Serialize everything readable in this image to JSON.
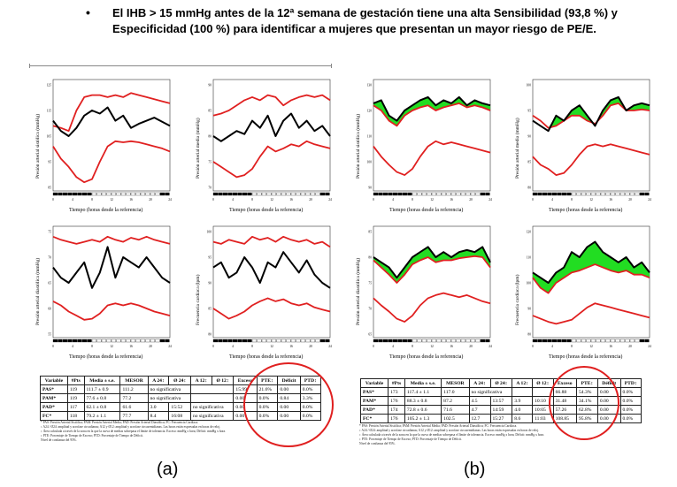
{
  "bullet": "•",
  "headline": "El IHB > 15 mmHg antes de la 12ª semana de gestación tiene una alta Sensibilidad (93,8 %) y Especificidad (100 %) para identificar a mujeres que presentan un mayor riesgo de PE/E.",
  "panels": {
    "a": [
      {
        "ylabel": "Presión arterial sistólica (mmHg)",
        "xlabel": "Tiempo (horas desde la referencia)",
        "yticks": [
          "125",
          "115",
          "105",
          "95",
          "85"
        ]
      },
      {
        "ylabel": "Presión arterial media (mmHg)",
        "xlabel": "Tiempo (horas desde la referencia)",
        "yticks": [
          "90",
          "85",
          "80",
          "75",
          "70"
        ]
      },
      {
        "ylabel": "Presión arterial diastólica (mmHg)",
        "xlabel": "Tiempo (horas desde la referencia)",
        "yticks": [
          "75",
          "70",
          "65",
          "60",
          "55"
        ]
      },
      {
        "ylabel": "Frecuencia cardíaca (lpm)",
        "xlabel": "Tiempo (horas desde la referencia)",
        "yticks": [
          "100",
          "95",
          "90",
          "85",
          "80"
        ]
      }
    ],
    "b": [
      {
        "ylabel": "Presión arterial sistólica (mmHg)",
        "xlabel": "Tiempo (horas desde la referencia)",
        "yticks": [
          "130",
          "120",
          "110",
          "100",
          "90"
        ]
      },
      {
        "ylabel": "Presión arterial media (mmHg)",
        "xlabel": "Tiempo (horas desde la referencia)",
        "yticks": [
          "100",
          "95",
          "90",
          "85",
          "80"
        ]
      },
      {
        "ylabel": "Presión arterial diastólica (mmHg)",
        "xlabel": "Tiempo (horas desde la referencia)",
        "yticks": [
          "85",
          "80",
          "75",
          "70",
          "65"
        ]
      },
      {
        "ylabel": "Frecuencia cardíaca (lpm)",
        "xlabel": "Tiempo (horas desde la referencia)",
        "yticks": [
          "120",
          "110",
          "100",
          "90",
          "80"
        ]
      }
    ]
  },
  "xticks": [
    "0",
    "4",
    "8",
    "12",
    "16",
    "20",
    "24"
  ],
  "tables": {
    "a": {
      "headers": [
        "Variable",
        "#Pts",
        "Media ± s.e.",
        "MESOR",
        "A 24↕",
        "Ø 24↕",
        "A 12↕",
        "Ø 12↕",
        "Exceso",
        "PTE↕",
        "Déficit",
        "PTD↕"
      ],
      "rows": [
        [
          "PAS*",
          "119",
          "111.7 ± 0.9",
          "111.2",
          "no significativa",
          "",
          "",
          "",
          "15.99",
          "21.6%",
          "0.00",
          "0.0%"
        ],
        [
          "PAM*",
          "119",
          "77.6 ± 0.8",
          "77.2",
          "no significativa",
          "",
          "",
          "",
          "0.00",
          "0.0%",
          "0.84",
          "3.3%"
        ],
        [
          "PAD*",
          "117",
          "62.1 ± 0.8",
          "61.6",
          "3.0",
          "15:52",
          "no significativa",
          "",
          "0.00",
          "0.0%",
          "0.00",
          "0.0%"
        ],
        [
          "FC*",
          "118",
          "79.2 ± 1.1",
          "77.7",
          "8.4",
          "16:08",
          "no significativa",
          "",
          "0.00",
          "0.0%",
          "0.00",
          "0.0%"
        ]
      ],
      "footnotes": [
        "* PAS: Presión Arterial Sistólica; PAM: Presión Arterial Media; PAD: Presión Arterial Diastólica; FC: Frecuencia Cardíaca.",
        "↕ A24 / Ø24: amplitud y acrofase circadianas; A12 y Ø12: amplitud y acrofase circasemidianas. Las horas están expresadas en horas de reloj.",
        "↕ Área calculada a través de la zona en la que la curva de medias sobrepasa el límite de tolerancia. Exceso: mmHg x hora; Déficit: mmHg x hora.",
        "↕ PTE: Porcentaje de Tiempo de Exceso; PTD: Porcentaje de Tiempo de Déficit.",
        "Nivel de confianza del 95%."
      ]
    },
    "b": {
      "headers": [
        "Variable",
        "#Pts",
        "Media ± s.e.",
        "MESOR",
        "A 24↕",
        "Ø 24↕",
        "A 12↕",
        "Ø 12↕",
        "Exceso",
        "PTE↕",
        "Déficit",
        "PTD↕"
      ],
      "rows": [
        [
          "PAS*",
          "173",
          "117.4 ± 1.1",
          "117.0",
          "no significativa",
          "",
          "",
          "",
          "66.88",
          "54.3%",
          "0.00",
          "0.0%"
        ],
        [
          "PAM*",
          "176",
          "88.3 ± 0.8",
          "87.2",
          "4.5",
          "13:57",
          "3.9",
          "10:10",
          "31.48",
          "34.1%",
          "0.00",
          "0.0%"
        ],
        [
          "PAD*",
          "174",
          "72.8 ± 0.6",
          "71.6",
          "4.7",
          "14:59",
          "4.0",
          "10:05",
          "57.26",
          "62.8%",
          "0.00",
          "0.0%"
        ],
        [
          "FC*",
          "176",
          "105.2 ± 1.3",
          "102.5",
          "12.7",
          "15:27",
          "8.6",
          "11:03",
          "108.85",
          "95.8%",
          "0.00",
          "0.0%"
        ]
      ],
      "footnotes": [
        "* PAS: Presión Arterial Sistólica; PAM: Presión Arterial Media; PAD: Presión Arterial Diastólica; FC: Frecuencia Cardíaca.",
        "↕ A24 / Ø24: amplitud y acrofase circadianas; A12 y Ø12: amplitud y acrofase circasemidianas. Las horas están expresadas en horas de reloj.",
        "↕ Área calculada a través de la zona en la que la curva de medias sobrepasa el límite de tolerancia. Exceso: mmHg x hora; Déficit: mmHg x hora.",
        "↕ PTE: Porcentaje de Tiempo de Exceso; PTD: Porcentaje de Tiempo de Déficit.",
        "Nivel de confianza del 95%."
      ]
    }
  },
  "labels": {
    "a": "(a)",
    "b": "(b)"
  },
  "colors": {
    "mean": "#000000",
    "limit": "#e02020",
    "excess": "#22dd22",
    "circle": "#e02020"
  }
}
